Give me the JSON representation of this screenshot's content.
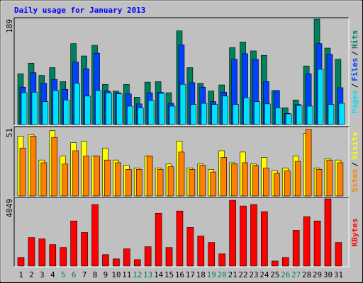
{
  "title": "Daily usage for January 2013",
  "title_color": "#0000ff",
  "chart_data": [
    {
      "type": "bar",
      "legend_separator": "/",
      "ylim": [
        0,
        189
      ],
      "yticks": [
        189
      ],
      "series": [
        {
          "name": "Hits",
          "color": "#00805c",
          "values": [
            91,
            110,
            88,
            102,
            77,
            145,
            123,
            142,
            72,
            60,
            72,
            49,
            76,
            77,
            57,
            168,
            102,
            74,
            60,
            71,
            138,
            148,
            132,
            124,
            61,
            30,
            44,
            105,
            189,
            137,
            117
          ]
        },
        {
          "name": "Files",
          "color": "#0040ff",
          "values": [
            67,
            93,
            74,
            81,
            63,
            112,
            100,
            128,
            60,
            57,
            55,
            37,
            57,
            58,
            38,
            143,
            75,
            67,
            41,
            58,
            117,
            127,
            117,
            77,
            61,
            20,
            36,
            91,
            145,
            126,
            66
          ]
        },
        {
          "name": "Pages",
          "color": "#00e0ff",
          "values": [
            57,
            58,
            41,
            61,
            44,
            74,
            51,
            61,
            57,
            55,
            33,
            30,
            43,
            56,
            33,
            72,
            36,
            38,
            36,
            51,
            36,
            48,
            41,
            37,
            30,
            19,
            34,
            33,
            99,
            36,
            38
          ]
        }
      ]
    },
    {
      "type": "bar",
      "legend_separator": "/",
      "ylim": [
        0,
        51
      ],
      "yticks": [
        51
      ],
      "series": [
        {
          "name": "Visits",
          "color": "#ffff00",
          "values": [
            45,
            46,
            27,
            49,
            30,
            40,
            41,
            30,
            36,
            27,
            23,
            21,
            30,
            21,
            24,
            41,
            21,
            24,
            20,
            34,
            25,
            33,
            24,
            29,
            19,
            21,
            30,
            47,
            21,
            28,
            27
          ]
        },
        {
          "name": "Sites",
          "color": "#ff8000",
          "values": [
            36,
            45,
            25,
            44,
            24,
            34,
            30,
            30,
            27,
            25,
            20,
            20,
            30,
            20,
            22,
            33,
            20,
            23,
            18,
            29,
            24,
            25,
            23,
            21,
            17,
            19,
            26,
            50,
            20,
            27,
            25
          ]
        }
      ]
    },
    {
      "type": "bar",
      "ylim": [
        0,
        4049
      ],
      "yticks": [
        4049
      ],
      "categories": [
        "1",
        "2",
        "3",
        "4",
        "5",
        "6",
        "7",
        "8",
        "9",
        "10",
        "11",
        "12",
        "13",
        "14",
        "15",
        "16",
        "17",
        "18",
        "19",
        "20",
        "21",
        "22",
        "23",
        "24",
        "25",
        "26",
        "27",
        "28",
        "29",
        "30",
        "31"
      ],
      "category_colors": [
        "#000000",
        "#000000",
        "#000000",
        "#000000",
        "#00805c",
        "#00805c",
        "#000000",
        "#000000",
        "#000000",
        "#000000",
        "#000000",
        "#00805c",
        "#00805c",
        "#000000",
        "#000000",
        "#000000",
        "#000000",
        "#000000",
        "#00805c",
        "#00805c",
        "#000000",
        "#000000",
        "#000000",
        "#000000",
        "#000000",
        "#00805c",
        "#00805c",
        "#000000",
        "#000000",
        "#000000",
        "#000000"
      ],
      "series": [
        {
          "name": "KBytes",
          "color": "#ff0000",
          "values": [
            516,
            1722,
            1636,
            1292,
            1120,
            2713,
            2024,
            3703,
            689,
            431,
            1034,
            388,
            1163,
            3186,
            1120,
            3316,
            2326,
            1809,
            1421,
            732,
            3962,
            3617,
            3703,
            3272,
            302,
            517,
            2154,
            2972,
            2713,
            4049,
            1421
          ]
        }
      ]
    }
  ]
}
